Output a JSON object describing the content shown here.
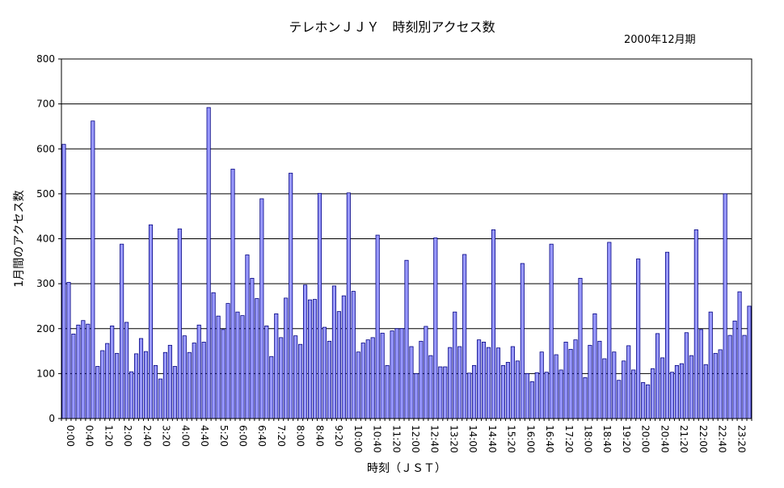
{
  "chart_data": {
    "type": "bar",
    "title": "テレホンＪＪＹ　時刻別アクセス数",
    "subtitle": "2000年12月期",
    "xlabel": "時刻（ＪＳＴ）",
    "ylabel": "1月間のアクセス数",
    "ylim": [
      0,
      800
    ],
    "yticks": [
      0,
      100,
      200,
      300,
      400,
      500,
      600,
      700,
      800
    ],
    "grid": true,
    "legend": "none",
    "bar_color": "#9999ff",
    "bar_border": "#000080",
    "xtick_labels": [
      "0:00",
      "0:40",
      "1:20",
      "2:00",
      "2:40",
      "3:20",
      "4:00",
      "4:40",
      "5:20",
      "6:00",
      "6:40",
      "7:20",
      "8:00",
      "8:40",
      "9:20",
      "10:00",
      "10:40",
      "11:20",
      "12:00",
      "12:40",
      "13:20",
      "14:00",
      "14:40",
      "15:20",
      "16:00",
      "16:40",
      "17:20",
      "18:00",
      "18:40",
      "19:20",
      "20:00",
      "20:40",
      "21:20",
      "22:00",
      "22:40",
      "23:20"
    ],
    "values": [
      610,
      303,
      188,
      208,
      218,
      210,
      662,
      116,
      151,
      167,
      206,
      145,
      388,
      214,
      104,
      144,
      178,
      149,
      431,
      118,
      88,
      147,
      163,
      116,
      422,
      184,
      147,
      168,
      208,
      170,
      692,
      280,
      228,
      198,
      256,
      555,
      237,
      229,
      364,
      312,
      267,
      489,
      206,
      138,
      233,
      180,
      268,
      546,
      184,
      165,
      297,
      264,
      265,
      501,
      203,
      172,
      295,
      238,
      273,
      502,
      283,
      148,
      168,
      175,
      180,
      408,
      190,
      118,
      195,
      200,
      200,
      352,
      160,
      100,
      172,
      205,
      140,
      402,
      115,
      115,
      158,
      237,
      160,
      365,
      101,
      118,
      175,
      170,
      158,
      420,
      157,
      118,
      125,
      160,
      128,
      345,
      100,
      82,
      102,
      148,
      103,
      388,
      142,
      108,
      170,
      154,
      175,
      312,
      91,
      163,
      233,
      172,
      133,
      392,
      148,
      85,
      128,
      162,
      108,
      355,
      80,
      75,
      111,
      189,
      135,
      370,
      103,
      118,
      122,
      191,
      140,
      420,
      198,
      120,
      237,
      145,
      153,
      500,
      185,
      217,
      282,
      185,
      250
    ]
  }
}
